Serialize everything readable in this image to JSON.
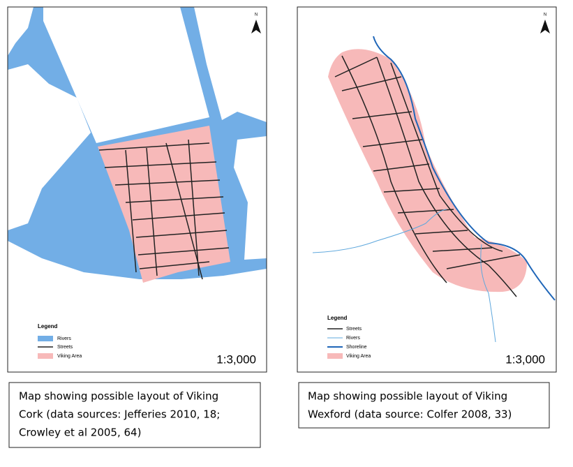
{
  "maps": [
    {
      "north": "N",
      "legend": {
        "title": "Legend",
        "items": [
          "Rivers",
          "Streets",
          "Viking Area"
        ]
      },
      "scale": "1:3,000",
      "caption": [
        "Map showing possible layout of Viking",
        "Cork (data sources: Jefferies 2010, 18;",
        "Crowley et al 2005, 64)"
      ]
    },
    {
      "north": "N",
      "legend": {
        "title": "Legend",
        "items": [
          "Streets",
          "Rivers",
          "Shoreline",
          "Viking Area"
        ]
      },
      "scale": "1:3,000",
      "caption": [
        "Map showing possible layout of Viking",
        "Wexford (data source: Colfer 2008, 33)"
      ]
    }
  ]
}
